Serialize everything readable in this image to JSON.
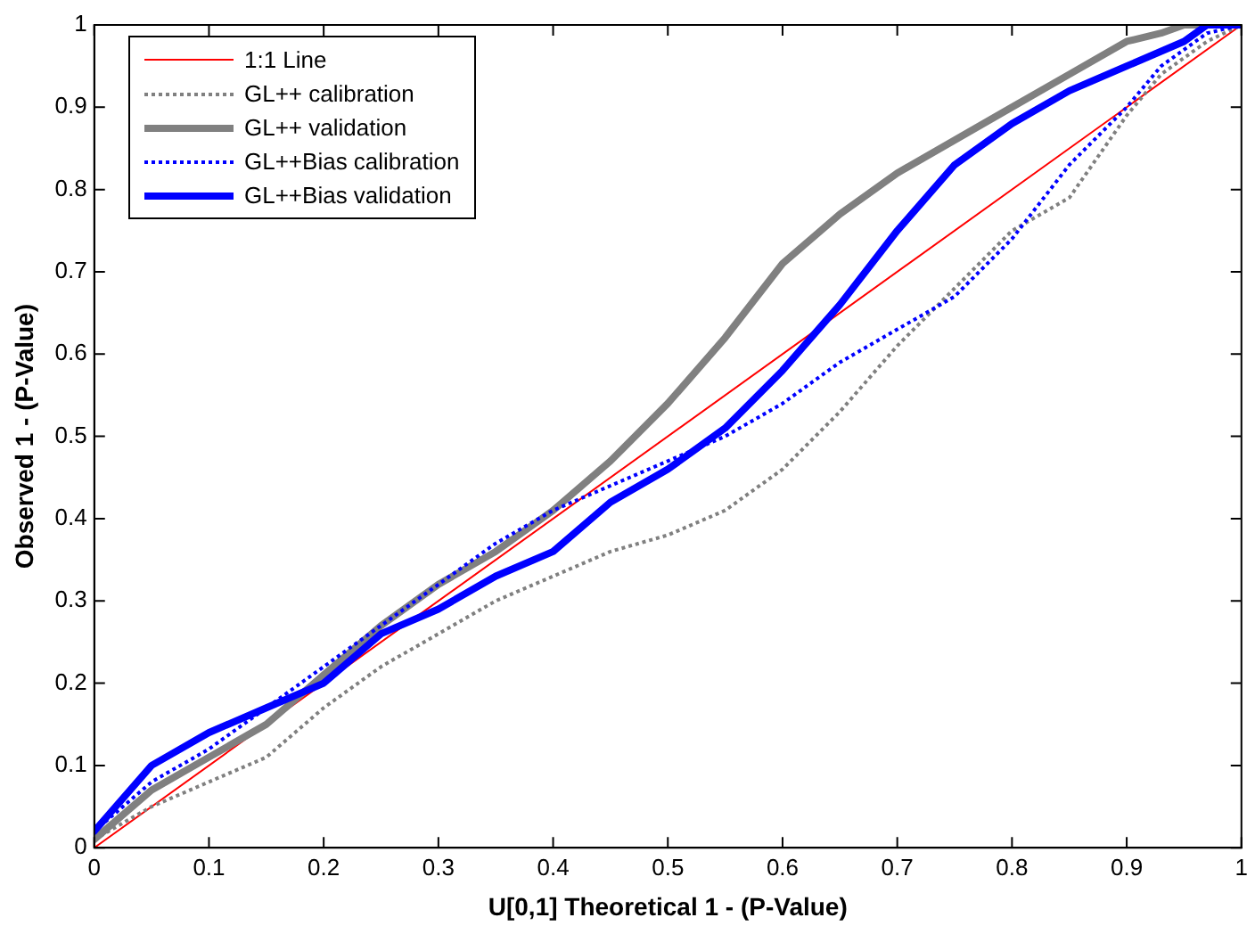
{
  "chart_data": {
    "type": "line",
    "xlabel": "U[0,1] Theoretical 1 - (P-Value)",
    "ylabel": "Observed 1 - (P-Value)",
    "xlim": [
      0,
      1
    ],
    "ylim": [
      0,
      1
    ],
    "xticks": [
      0,
      0.1,
      0.2,
      0.3,
      0.4,
      0.5,
      0.6,
      0.7,
      0.8,
      0.9,
      1
    ],
    "yticks": [
      0,
      0.1,
      0.2,
      0.3,
      0.4,
      0.5,
      0.6,
      0.7,
      0.8,
      0.9,
      1
    ],
    "grid": false,
    "legend": "top left",
    "marker": "none",
    "series": [
      {
        "name": "1:1 Line",
        "color": "#ff0000",
        "line_style": "solid",
        "x": [
          0,
          1
        ],
        "values": [
          0,
          1
        ]
      },
      {
        "name": "GL++ calibration",
        "color": "#808080",
        "line_style": "dotted",
        "x": [
          0,
          0.05,
          0.1,
          0.15,
          0.2,
          0.25,
          0.3,
          0.35,
          0.4,
          0.45,
          0.5,
          0.55,
          0.6,
          0.65,
          0.7,
          0.75,
          0.8,
          0.85,
          0.9,
          0.93,
          0.97,
          1
        ],
        "values": [
          0.01,
          0.05,
          0.08,
          0.11,
          0.17,
          0.22,
          0.26,
          0.3,
          0.33,
          0.36,
          0.38,
          0.41,
          0.46,
          0.53,
          0.61,
          0.68,
          0.75,
          0.79,
          0.89,
          0.94,
          0.98,
          1
        ]
      },
      {
        "name": "GL++ validation",
        "color": "#808080",
        "line_style": "solid",
        "x": [
          0,
          0.05,
          0.1,
          0.15,
          0.2,
          0.25,
          0.3,
          0.35,
          0.4,
          0.45,
          0.5,
          0.55,
          0.6,
          0.65,
          0.7,
          0.75,
          0.8,
          0.85,
          0.9,
          0.93,
          0.95,
          1
        ],
        "values": [
          0.01,
          0.07,
          0.11,
          0.15,
          0.21,
          0.27,
          0.32,
          0.36,
          0.41,
          0.47,
          0.54,
          0.62,
          0.71,
          0.77,
          0.82,
          0.86,
          0.9,
          0.94,
          0.98,
          0.99,
          1,
          1
        ]
      },
      {
        "name": "GL++Bias calibration",
        "color": "#0000ff",
        "line_style": "dotted",
        "x": [
          0,
          0.05,
          0.1,
          0.15,
          0.2,
          0.25,
          0.3,
          0.35,
          0.4,
          0.45,
          0.5,
          0.55,
          0.6,
          0.65,
          0.7,
          0.75,
          0.8,
          0.85,
          0.9,
          0.93,
          0.97,
          1
        ],
        "values": [
          0.02,
          0.08,
          0.12,
          0.17,
          0.22,
          0.27,
          0.32,
          0.37,
          0.41,
          0.44,
          0.47,
          0.5,
          0.54,
          0.59,
          0.63,
          0.67,
          0.74,
          0.83,
          0.9,
          0.95,
          0.99,
          1
        ]
      },
      {
        "name": "GL++Bias validation",
        "color": "#0000ff",
        "line_style": "solid",
        "x": [
          0,
          0.05,
          0.1,
          0.15,
          0.2,
          0.25,
          0.3,
          0.35,
          0.4,
          0.45,
          0.5,
          0.55,
          0.6,
          0.65,
          0.7,
          0.75,
          0.8,
          0.85,
          0.9,
          0.95,
          0.97,
          1
        ],
        "values": [
          0.02,
          0.1,
          0.14,
          0.17,
          0.2,
          0.26,
          0.29,
          0.33,
          0.36,
          0.42,
          0.46,
          0.51,
          0.58,
          0.66,
          0.75,
          0.83,
          0.88,
          0.92,
          0.95,
          0.98,
          1,
          1
        ]
      }
    ]
  }
}
